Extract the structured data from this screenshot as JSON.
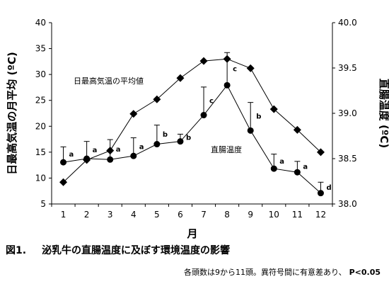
{
  "chart_data": {
    "type": "line",
    "x": [
      1,
      2,
      3,
      4,
      5,
      6,
      7,
      8,
      9,
      10,
      11,
      12
    ],
    "xlabel": "月",
    "xlim": [
      0.5,
      12.5
    ],
    "y_left": {
      "label": "日最高気温の月平均 (ºC)",
      "ylim": [
        5,
        40
      ],
      "ticks": [
        5,
        10,
        15,
        20,
        25,
        30,
        35,
        40
      ]
    },
    "y_right": {
      "label": "直腸温度 (ºC)",
      "ylim": [
        38.0,
        40.0
      ],
      "ticks": [
        "38.0",
        "38.5",
        "39.0",
        "39.5",
        "40.0"
      ]
    },
    "series": [
      {
        "name": "日最高気温の平均値",
        "axis": "left",
        "marker": "diamond",
        "values": [
          9.2,
          13.5,
          15.3,
          22.4,
          25.2,
          29.3,
          32.6,
          33.0,
          31.2,
          23.3,
          19.3,
          15.0
        ]
      },
      {
        "name": "直腸温度",
        "axis": "right",
        "marker": "circle",
        "values": [
          38.46,
          38.5,
          38.49,
          38.53,
          38.66,
          38.69,
          38.98,
          39.31,
          38.81,
          38.39,
          38.35,
          38.12
        ],
        "error_upper": [
          38.63,
          38.69,
          38.71,
          38.73,
          38.87,
          38.77,
          39.29,
          39.67,
          39.12,
          38.55,
          38.47,
          38.24
        ],
        "significance": [
          "a",
          "a",
          "a",
          "a",
          "b",
          "b",
          "c",
          "c",
          "b",
          "a",
          "a",
          "d"
        ]
      }
    ]
  },
  "caption": {
    "fig_num": "図1.",
    "title": "泌乳牛の直腸温度に及ぼす環境温度の影響"
  },
  "footnote": {
    "text": "各頭数は9から11頭。異符号間に有意差あり、",
    "pvalue": "P<0.05"
  }
}
